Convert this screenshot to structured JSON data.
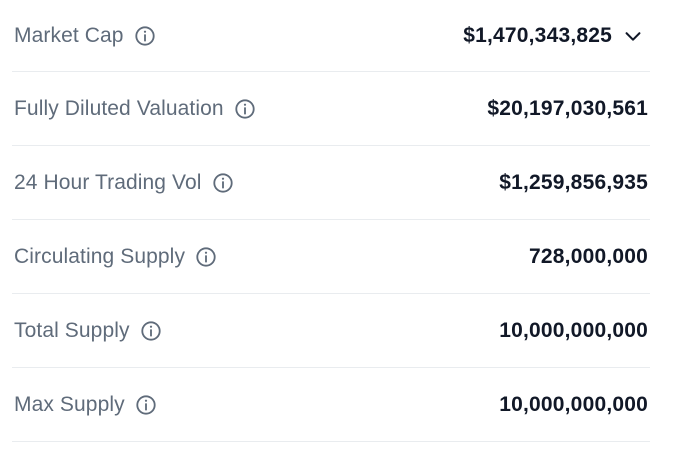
{
  "stats": [
    {
      "label": "Market Cap",
      "value": "$1,470,343,825",
      "has_dropdown": true
    },
    {
      "label": "Fully Diluted Valuation",
      "value": "$20,197,030,561",
      "has_dropdown": false
    },
    {
      "label": "24 Hour Trading Vol",
      "value": "$1,259,856,935",
      "has_dropdown": false
    },
    {
      "label": "Circulating Supply",
      "value": "728,000,000",
      "has_dropdown": false
    },
    {
      "label": "Total Supply",
      "value": "10,000,000,000",
      "has_dropdown": false
    },
    {
      "label": "Max Supply",
      "value": "10,000,000,000",
      "has_dropdown": false
    }
  ],
  "icons": {
    "info": "info-circle-icon",
    "dropdown": "chevron-down-icon"
  },
  "colors": {
    "label": "#5f6b7a",
    "value": "#111827",
    "divider": "#e9ecef"
  }
}
